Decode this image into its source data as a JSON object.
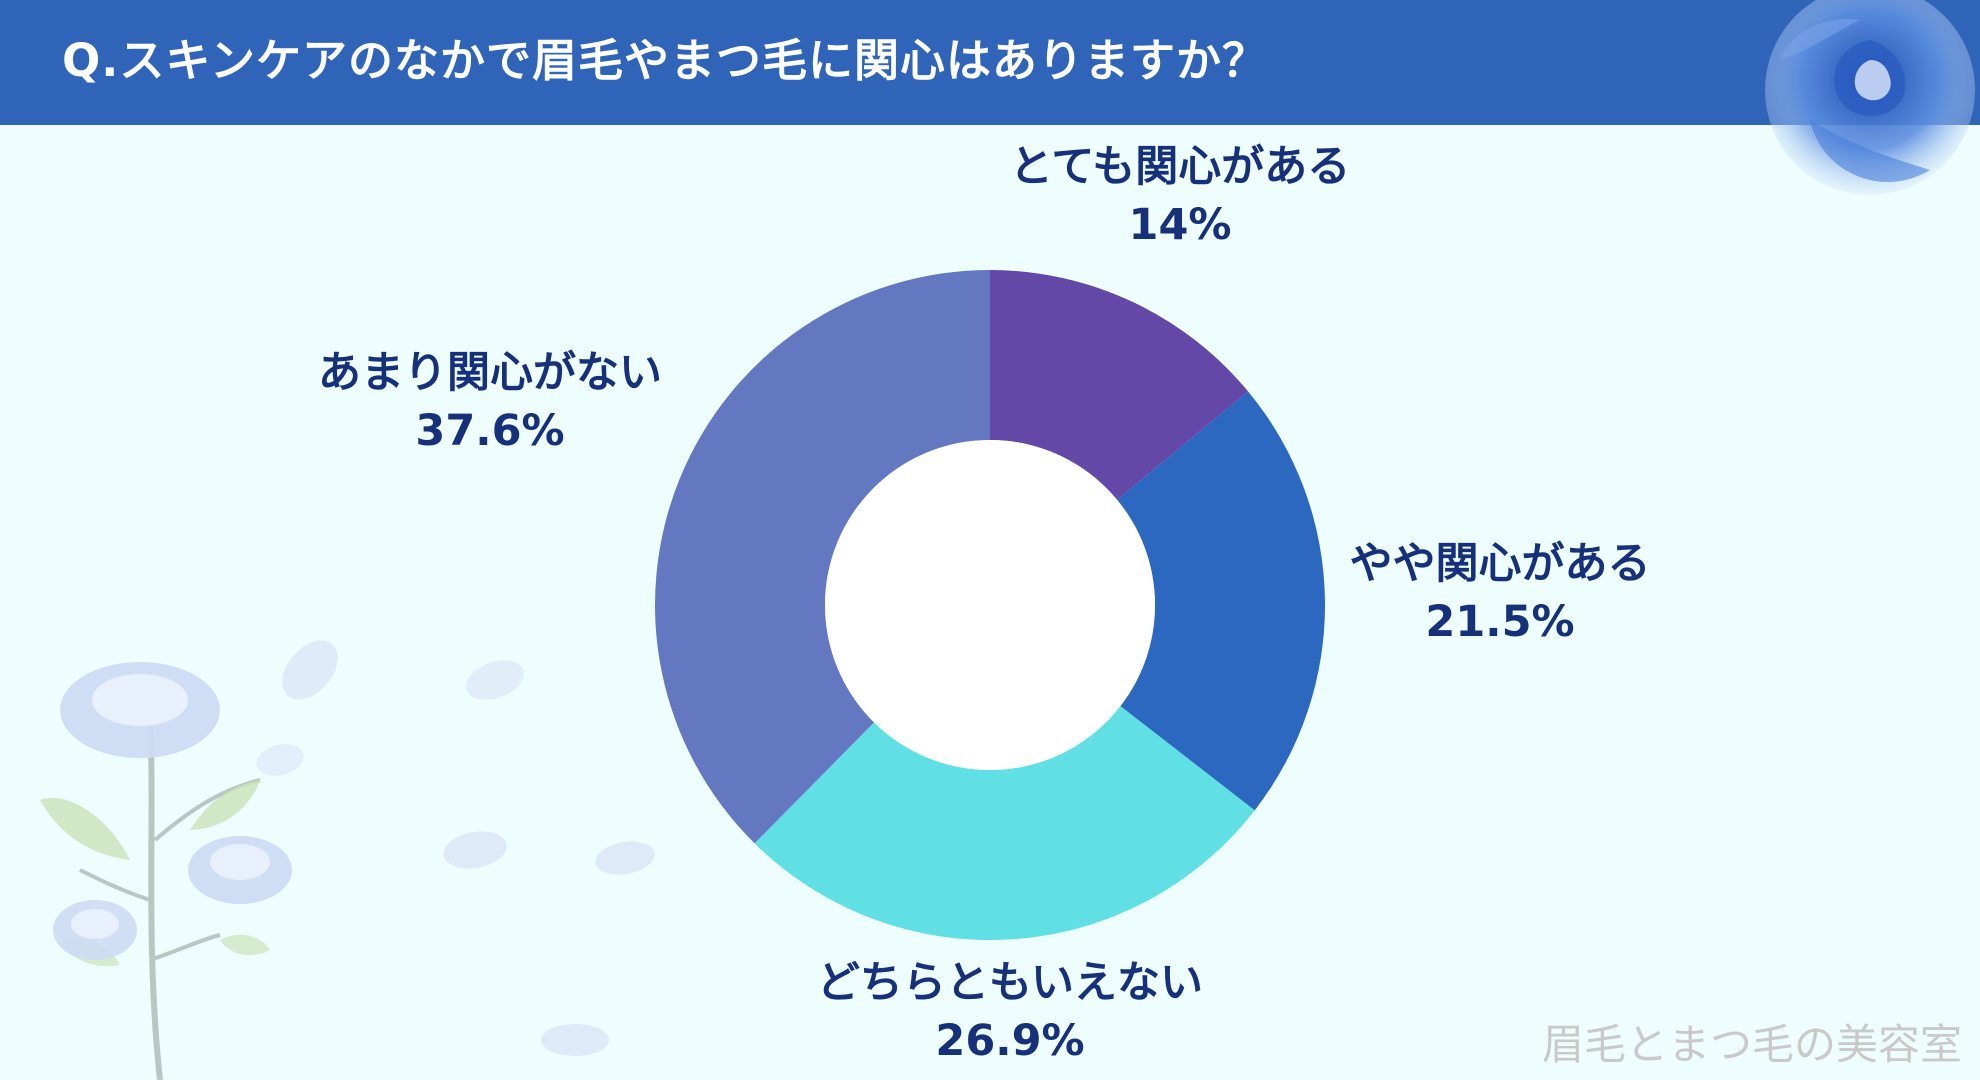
{
  "header": {
    "title": "Q.スキンケアのなかで眉毛やまつ毛に関心はありますか？"
  },
  "watermark": "眉毛とまつ毛の美容室",
  "colors": {
    "header_bg": "#2f64b8",
    "background": "#eefdfd",
    "label_text": "#17307a"
  },
  "chart_data": {
    "type": "pie",
    "donut": true,
    "slices": [
      {
        "label": "とても関心がある",
        "value": 14,
        "value_text": "14%",
        "color": "#6348a8"
      },
      {
        "label": "やや関心がある",
        "value": 21.5,
        "value_text": "21.5%",
        "color": "#2d68c0"
      },
      {
        "label": "どちらともいえない",
        "value": 26.9,
        "value_text": "26.9%",
        "color": "#60e0e4"
      },
      {
        "label": "あまり関心がない",
        "value": 37.6,
        "value_text": "37.6%",
        "color": "#6478c2"
      }
    ]
  }
}
